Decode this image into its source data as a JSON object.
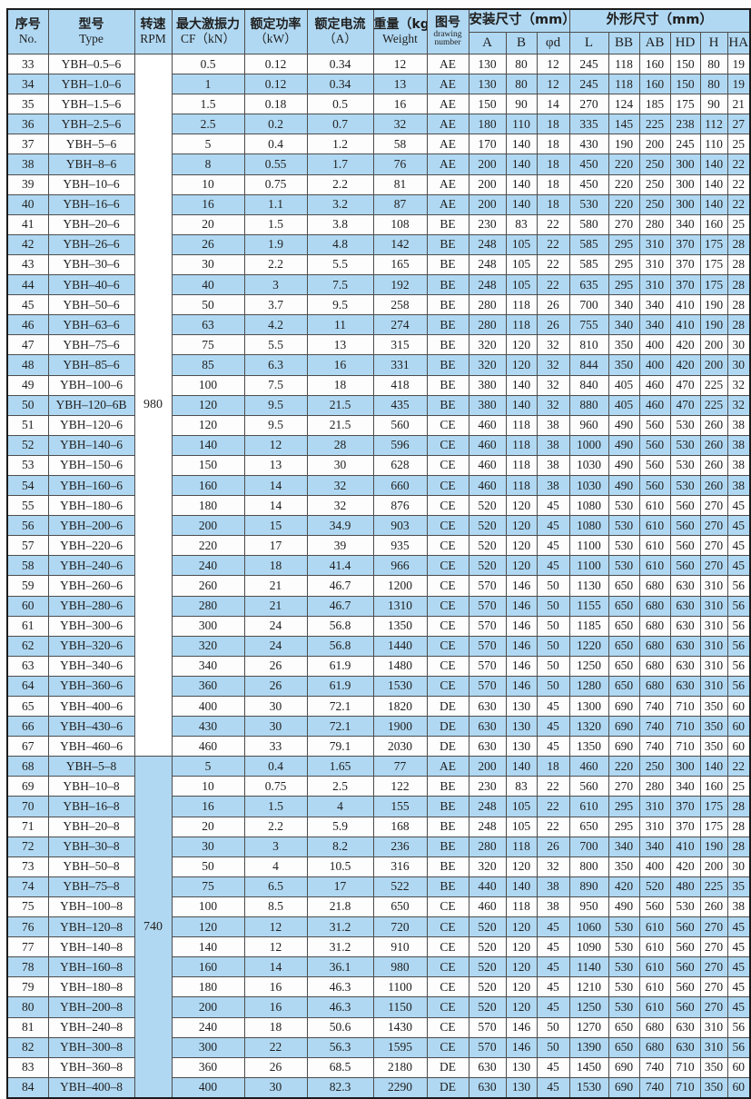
{
  "meta": {
    "description": "Specification table for YBH series vibration motors, rows No.33-84",
    "colors": {
      "stripe": "#b0d8f2",
      "header_bg": "#b0d8f2",
      "grid_line": "#4d4d4d",
      "outer_border": "#1b1b1b"
    }
  },
  "table": {
    "header": {
      "no": {
        "zh": "序号",
        "en": "No."
      },
      "type": {
        "zh": "型号",
        "en": "Type"
      },
      "rpm": {
        "zh": "转速",
        "en": "RPM"
      },
      "cf": {
        "zh": "最大激振力",
        "en": "CF（kN）"
      },
      "kw": {
        "zh": "额定功率",
        "en": "（kW）"
      },
      "current": {
        "zh": "额定电流",
        "en": "（A）"
      },
      "weight": {
        "zh": "重量（kg）",
        "en": "Weight"
      },
      "drawing": {
        "zh": "图号",
        "en": "drawing number"
      },
      "install": {
        "zh": "安装尺寸（mm）",
        "cols": [
          "A",
          "B",
          "φd"
        ]
      },
      "outline": {
        "zh": "外形尺寸（mm）",
        "cols": [
          "L",
          "BB",
          "AB",
          "HD",
          "H",
          "HA"
        ]
      }
    },
    "column_keys": [
      "no",
      "type",
      "cf_kn",
      "power_kw",
      "current_a",
      "weight_kg",
      "drawing_no",
      "A",
      "B",
      "phi_d",
      "L",
      "BB",
      "AB",
      "HD",
      "H",
      "HA"
    ],
    "groups": [
      {
        "rpm": "980",
        "rows": [
          [
            "33",
            "YBH–0.5–6",
            "0.5",
            "0.12",
            "0.34",
            "12",
            "AE",
            "130",
            "80",
            "12",
            "245",
            "118",
            "160",
            "150",
            "80",
            "19"
          ],
          [
            "34",
            "YBH–1.0–6",
            "1",
            "0.12",
            "0.34",
            "13",
            "AE",
            "130",
            "80",
            "12",
            "245",
            "118",
            "160",
            "150",
            "80",
            "19"
          ],
          [
            "35",
            "YBH–1.5–6",
            "1.5",
            "0.18",
            "0.5",
            "16",
            "AE",
            "150",
            "90",
            "14",
            "270",
            "124",
            "185",
            "175",
            "90",
            "21"
          ],
          [
            "36",
            "YBH–2.5–6",
            "2.5",
            "0.2",
            "0.7",
            "32",
            "AE",
            "180",
            "110",
            "18",
            "335",
            "145",
            "225",
            "238",
            "112",
            "27"
          ],
          [
            "37",
            "YBH–5–6",
            "5",
            "0.4",
            "1.2",
            "58",
            "AE",
            "170",
            "140",
            "18",
            "430",
            "190",
            "200",
            "245",
            "110",
            "25"
          ],
          [
            "38",
            "YBH–8–6",
            "8",
            "0.55",
            "1.7",
            "76",
            "AE",
            "200",
            "140",
            "18",
            "450",
            "220",
            "250",
            "300",
            "140",
            "22"
          ],
          [
            "39",
            "YBH–10–6",
            "10",
            "0.75",
            "2.2",
            "81",
            "AE",
            "200",
            "140",
            "18",
            "450",
            "220",
            "250",
            "300",
            "140",
            "22"
          ],
          [
            "40",
            "YBH–16–6",
            "16",
            "1.1",
            "3.2",
            "87",
            "AE",
            "200",
            "140",
            "18",
            "530",
            "220",
            "250",
            "300",
            "140",
            "22"
          ],
          [
            "41",
            "YBH–20–6",
            "20",
            "1.5",
            "3.8",
            "108",
            "BE",
            "230",
            "83",
            "22",
            "580",
            "270",
            "280",
            "340",
            "160",
            "25"
          ],
          [
            "42",
            "YBH–26–6",
            "26",
            "1.9",
            "4.8",
            "142",
            "BE",
            "248",
            "105",
            "22",
            "585",
            "295",
            "310",
            "370",
            "175",
            "28"
          ],
          [
            "43",
            "YBH–30–6",
            "30",
            "2.2",
            "5.5",
            "165",
            "BE",
            "248",
            "105",
            "22",
            "585",
            "295",
            "310",
            "370",
            "175",
            "28"
          ],
          [
            "44",
            "YBH–40–6",
            "40",
            "3",
            "7.5",
            "192",
            "BE",
            "248",
            "105",
            "22",
            "635",
            "295",
            "310",
            "370",
            "175",
            "28"
          ],
          [
            "45",
            "YBH–50–6",
            "50",
            "3.7",
            "9.5",
            "258",
            "BE",
            "280",
            "118",
            "26",
            "700",
            "340",
            "340",
            "410",
            "190",
            "28"
          ],
          [
            "46",
            "YBH–63–6",
            "63",
            "4.2",
            "11",
            "274",
            "BE",
            "280",
            "118",
            "26",
            "755",
            "340",
            "340",
            "410",
            "190",
            "28"
          ],
          [
            "47",
            "YBH–75–6",
            "75",
            "5.5",
            "13",
            "315",
            "BE",
            "320",
            "120",
            "32",
            "810",
            "350",
            "400",
            "420",
            "200",
            "30"
          ],
          [
            "48",
            "YBH–85–6",
            "85",
            "6.3",
            "16",
            "331",
            "BE",
            "320",
            "120",
            "32",
            "844",
            "350",
            "400",
            "420",
            "200",
            "30"
          ],
          [
            "49",
            "YBH–100–6",
            "100",
            "7.5",
            "18",
            "418",
            "BE",
            "380",
            "140",
            "32",
            "840",
            "405",
            "460",
            "470",
            "225",
            "32"
          ],
          [
            "50",
            "YBH–120–6B",
            "120",
            "9.5",
            "21.5",
            "435",
            "BE",
            "380",
            "140",
            "32",
            "880",
            "405",
            "460",
            "470",
            "225",
            "32"
          ],
          [
            "51",
            "YBH–120–6",
            "120",
            "9.5",
            "21.5",
            "560",
            "CE",
            "460",
            "118",
            "38",
            "960",
            "490",
            "560",
            "530",
            "260",
            "38"
          ],
          [
            "52",
            "YBH–140–6",
            "140",
            "12",
            "28",
            "596",
            "CE",
            "460",
            "118",
            "38",
            "1000",
            "490",
            "560",
            "530",
            "260",
            "38"
          ],
          [
            "53",
            "YBH–150–6",
            "150",
            "13",
            "30",
            "628",
            "CE",
            "460",
            "118",
            "38",
            "1030",
            "490",
            "560",
            "530",
            "260",
            "38"
          ],
          [
            "54",
            "YBH–160–6",
            "160",
            "14",
            "32",
            "660",
            "CE",
            "460",
            "118",
            "38",
            "1030",
            "490",
            "560",
            "530",
            "260",
            "38"
          ],
          [
            "55",
            "YBH–180–6",
            "180",
            "14",
            "32",
            "876",
            "CE",
            "520",
            "120",
            "45",
            "1080",
            "530",
            "610",
            "560",
            "270",
            "45"
          ],
          [
            "56",
            "YBH–200–6",
            "200",
            "15",
            "34.9",
            "903",
            "CE",
            "520",
            "120",
            "45",
            "1080",
            "530",
            "610",
            "560",
            "270",
            "45"
          ],
          [
            "57",
            "YBH–220–6",
            "220",
            "17",
            "39",
            "935",
            "CE",
            "520",
            "120",
            "45",
            "1100",
            "530",
            "610",
            "560",
            "270",
            "45"
          ],
          [
            "58",
            "YBH–240–6",
            "240",
            "18",
            "41.4",
            "966",
            "CE",
            "520",
            "120",
            "45",
            "1100",
            "530",
            "610",
            "560",
            "270",
            "45"
          ],
          [
            "59",
            "YBH–260–6",
            "260",
            "21",
            "46.7",
            "1200",
            "CE",
            "570",
            "146",
            "50",
            "1130",
            "650",
            "680",
            "630",
            "310",
            "56"
          ],
          [
            "60",
            "YBH–280–6",
            "280",
            "21",
            "46.7",
            "1310",
            "CE",
            "570",
            "146",
            "50",
            "1155",
            "650",
            "680",
            "630",
            "310",
            "56"
          ],
          [
            "61",
            "YBH–300–6",
            "300",
            "24",
            "56.8",
            "1350",
            "CE",
            "570",
            "146",
            "50",
            "1185",
            "650",
            "680",
            "630",
            "310",
            "56"
          ],
          [
            "62",
            "YBH–320–6",
            "320",
            "24",
            "56.8",
            "1440",
            "CE",
            "570",
            "146",
            "50",
            "1220",
            "650",
            "680",
            "630",
            "310",
            "56"
          ],
          [
            "63",
            "YBH–340–6",
            "340",
            "26",
            "61.9",
            "1480",
            "CE",
            "570",
            "146",
            "50",
            "1250",
            "650",
            "680",
            "630",
            "310",
            "56"
          ],
          [
            "64",
            "YBH–360–6",
            "360",
            "26",
            "61.9",
            "1530",
            "CE",
            "570",
            "146",
            "50",
            "1280",
            "650",
            "680",
            "630",
            "310",
            "56"
          ],
          [
            "65",
            "YBH–400–6",
            "400",
            "30",
            "72.1",
            "1820",
            "DE",
            "630",
            "130",
            "45",
            "1300",
            "690",
            "740",
            "710",
            "350",
            "60"
          ],
          [
            "66",
            "YBH–430–6",
            "430",
            "30",
            "72.1",
            "1900",
            "DE",
            "630",
            "130",
            "45",
            "1320",
            "690",
            "740",
            "710",
            "350",
            "60"
          ],
          [
            "67",
            "YBH–460–6",
            "460",
            "33",
            "79.1",
            "2030",
            "DE",
            "630",
            "130",
            "45",
            "1350",
            "690",
            "740",
            "710",
            "350",
            "60"
          ]
        ]
      },
      {
        "rpm": "740",
        "rows": [
          [
            "68",
            "YBH–5–8",
            "5",
            "0.4",
            "1.65",
            "77",
            "AE",
            "200",
            "140",
            "18",
            "460",
            "220",
            "250",
            "300",
            "140",
            "22"
          ],
          [
            "69",
            "YBH–10–8",
            "10",
            "0.75",
            "2.5",
            "122",
            "BE",
            "230",
            "83",
            "22",
            "560",
            "270",
            "280",
            "340",
            "160",
            "25"
          ],
          [
            "70",
            "YBH–16–8",
            "16",
            "1.5",
            "4",
            "155",
            "BE",
            "248",
            "105",
            "22",
            "610",
            "295",
            "310",
            "370",
            "175",
            "28"
          ],
          [
            "71",
            "YBH–20–8",
            "20",
            "2.2",
            "5.9",
            "168",
            "BE",
            "248",
            "105",
            "22",
            "650",
            "295",
            "310",
            "370",
            "175",
            "28"
          ],
          [
            "72",
            "YBH–30–8",
            "30",
            "3",
            "8.2",
            "236",
            "BE",
            "280",
            "118",
            "26",
            "700",
            "340",
            "340",
            "410",
            "190",
            "28"
          ],
          [
            "73",
            "YBH–50–8",
            "50",
            "4",
            "10.5",
            "316",
            "BE",
            "320",
            "120",
            "32",
            "800",
            "350",
            "400",
            "420",
            "200",
            "30"
          ],
          [
            "74",
            "YBH–75–8",
            "75",
            "6.5",
            "17",
            "522",
            "BE",
            "440",
            "140",
            "38",
            "890",
            "420",
            "520",
            "480",
            "225",
            "35"
          ],
          [
            "75",
            "YBH–100–8",
            "100",
            "8.5",
            "21.8",
            "650",
            "CE",
            "460",
            "118",
            "38",
            "950",
            "490",
            "560",
            "530",
            "260",
            "38"
          ],
          [
            "76",
            "YBH–120–8",
            "120",
            "12",
            "31.2",
            "720",
            "CE",
            "520",
            "120",
            "45",
            "1060",
            "530",
            "610",
            "560",
            "270",
            "45"
          ],
          [
            "77",
            "YBH–140–8",
            "140",
            "12",
            "31.2",
            "910",
            "CE",
            "520",
            "120",
            "45",
            "1090",
            "530",
            "610",
            "560",
            "270",
            "45"
          ],
          [
            "78",
            "YBH–160–8",
            "160",
            "14",
            "36.1",
            "980",
            "CE",
            "520",
            "120",
            "45",
            "1140",
            "530",
            "610",
            "560",
            "270",
            "45"
          ],
          [
            "79",
            "YBH–180–8",
            "180",
            "16",
            "46.3",
            "1100",
            "CE",
            "520",
            "120",
            "45",
            "1210",
            "530",
            "610",
            "560",
            "270",
            "45"
          ],
          [
            "80",
            "YBH–200–8",
            "200",
            "16",
            "46.3",
            "1150",
            "CE",
            "520",
            "120",
            "45",
            "1250",
            "530",
            "610",
            "560",
            "270",
            "45"
          ],
          [
            "81",
            "YBH–240–8",
            "240",
            "18",
            "50.6",
            "1430",
            "CE",
            "570",
            "146",
            "50",
            "1270",
            "650",
            "680",
            "630",
            "310",
            "56"
          ],
          [
            "82",
            "YBH–300–8",
            "300",
            "22",
            "56.3",
            "1595",
            "CE",
            "570",
            "146",
            "50",
            "1390",
            "650",
            "680",
            "630",
            "310",
            "56"
          ],
          [
            "83",
            "YBH–360–8",
            "360",
            "26",
            "68.5",
            "2180",
            "DE",
            "630",
            "130",
            "45",
            "1450",
            "690",
            "740",
            "710",
            "350",
            "60"
          ],
          [
            "84",
            "YBH–400–8",
            "400",
            "30",
            "82.3",
            "2290",
            "DE",
            "630",
            "130",
            "45",
            "1530",
            "690",
            "740",
            "710",
            "350",
            "60"
          ]
        ]
      }
    ]
  }
}
